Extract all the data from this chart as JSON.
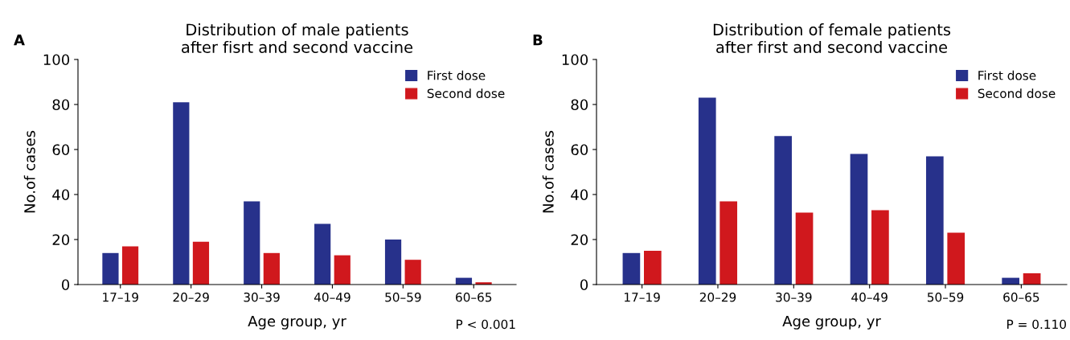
{
  "chart_data": [
    {
      "type": "bar",
      "title": "Distribution of male patients\nafter fisrt and second vaccine",
      "xlabel": "Age group, yr",
      "ylabel": "No.of cases",
      "categories": [
        "17–19",
        "20–29",
        "30–39",
        "40–49",
        "50–59",
        "60–65"
      ],
      "series": [
        {
          "name": "First dose",
          "color": "#27318b",
          "values": [
            14,
            81,
            37,
            27,
            20,
            3
          ]
        },
        {
          "name": "Second dose",
          "color": "#d0181d",
          "values": [
            17,
            19,
            14,
            13,
            11,
            1
          ]
        }
      ],
      "ylim": [
        0,
        100
      ],
      "yticks": [
        0,
        20,
        40,
        60,
        80,
        100
      ],
      "grid": false,
      "legend": "top right",
      "annotations": [
        "A",
        "P < 0.001"
      ]
    },
    {
      "type": "bar",
      "title": "Distribution of female patients\nafter first and second vaccine",
      "xlabel": "Age group, yr",
      "ylabel": "No.of cases",
      "categories": [
        "17–19",
        "20–29",
        "30–39",
        "40–49",
        "50–59",
        "60–65"
      ],
      "series": [
        {
          "name": "First dose",
          "color": "#27318b",
          "values": [
            14,
            83,
            66,
            58,
            57,
            3
          ]
        },
        {
          "name": "Second dose",
          "color": "#d0181d",
          "values": [
            15,
            37,
            32,
            33,
            23,
            5
          ]
        }
      ],
      "ylim": [
        0,
        100
      ],
      "yticks": [
        0,
        20,
        40,
        60,
        80,
        100
      ],
      "grid": false,
      "legend": "top right",
      "annotations": [
        "B",
        "P = 0.110"
      ]
    }
  ]
}
